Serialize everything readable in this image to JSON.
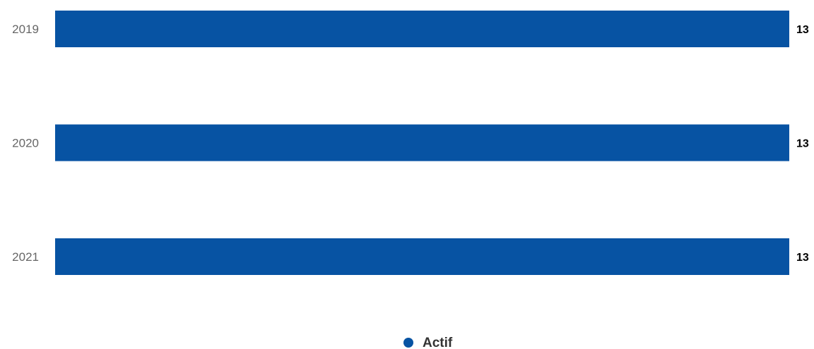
{
  "chart_data": {
    "type": "bar",
    "orientation": "horizontal",
    "categories": [
      "2019",
      "2020",
      "2021"
    ],
    "series": [
      {
        "name": "Actif",
        "values": [
          13,
          13,
          13
        ],
        "color": "#0753a3"
      }
    ],
    "title": "",
    "xlabel": "",
    "ylabel": "",
    "xlim": [
      0,
      13
    ],
    "grid": false,
    "data_labels": true,
    "legend_position": "bottom-center"
  }
}
